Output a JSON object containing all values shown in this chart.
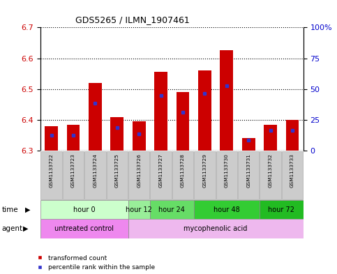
{
  "title": "GDS5265 / ILMN_1907461",
  "samples": [
    "GSM1133722",
    "GSM1133723",
    "GSM1133724",
    "GSM1133725",
    "GSM1133726",
    "GSM1133727",
    "GSM1133728",
    "GSM1133729",
    "GSM1133730",
    "GSM1133731",
    "GSM1133732",
    "GSM1133733"
  ],
  "bar_tops": [
    6.38,
    6.385,
    6.52,
    6.41,
    6.395,
    6.555,
    6.49,
    6.56,
    6.625,
    6.34,
    6.385,
    6.4
  ],
  "bar_base": 6.3,
  "blue_vals": [
    6.35,
    6.35,
    6.455,
    6.375,
    6.355,
    6.48,
    6.425,
    6.485,
    6.51,
    6.335,
    6.365,
    6.365
  ],
  "ylim_left": [
    6.3,
    6.7
  ],
  "yticks_left": [
    6.3,
    6.4,
    6.5,
    6.6,
    6.7
  ],
  "ylim_right": [
    0,
    100
  ],
  "yticks_right": [
    0,
    25,
    50,
    75,
    100
  ],
  "yticklabels_right": [
    "0",
    "25",
    "50",
    "75",
    "100%"
  ],
  "bar_color": "#cc0000",
  "blue_color": "#3333cc",
  "bar_width": 0.6,
  "time_groups": [
    {
      "label": "hour 0",
      "cols": [
        0,
        1,
        2,
        3
      ],
      "color": "#ccffcc"
    },
    {
      "label": "hour 12",
      "cols": [
        4
      ],
      "color": "#99ee99"
    },
    {
      "label": "hour 24",
      "cols": [
        5,
        6
      ],
      "color": "#66dd66"
    },
    {
      "label": "hour 48",
      "cols": [
        7,
        8,
        9
      ],
      "color": "#33cc33"
    },
    {
      "label": "hour 72",
      "cols": [
        10,
        11
      ],
      "color": "#22bb22"
    }
  ],
  "agent_groups": [
    {
      "label": "untreated control",
      "cols": [
        0,
        1,
        2,
        3
      ],
      "color": "#ee88ee"
    },
    {
      "label": "mycophenolic acid",
      "cols": [
        4,
        5,
        6,
        7,
        8,
        9,
        10,
        11
      ],
      "color": "#eeb8ee"
    }
  ],
  "left_axis_color": "#cc0000",
  "right_axis_color": "#0000cc",
  "gsm_box_color": "#cccccc",
  "gsm_box_edge": "#aaaaaa"
}
